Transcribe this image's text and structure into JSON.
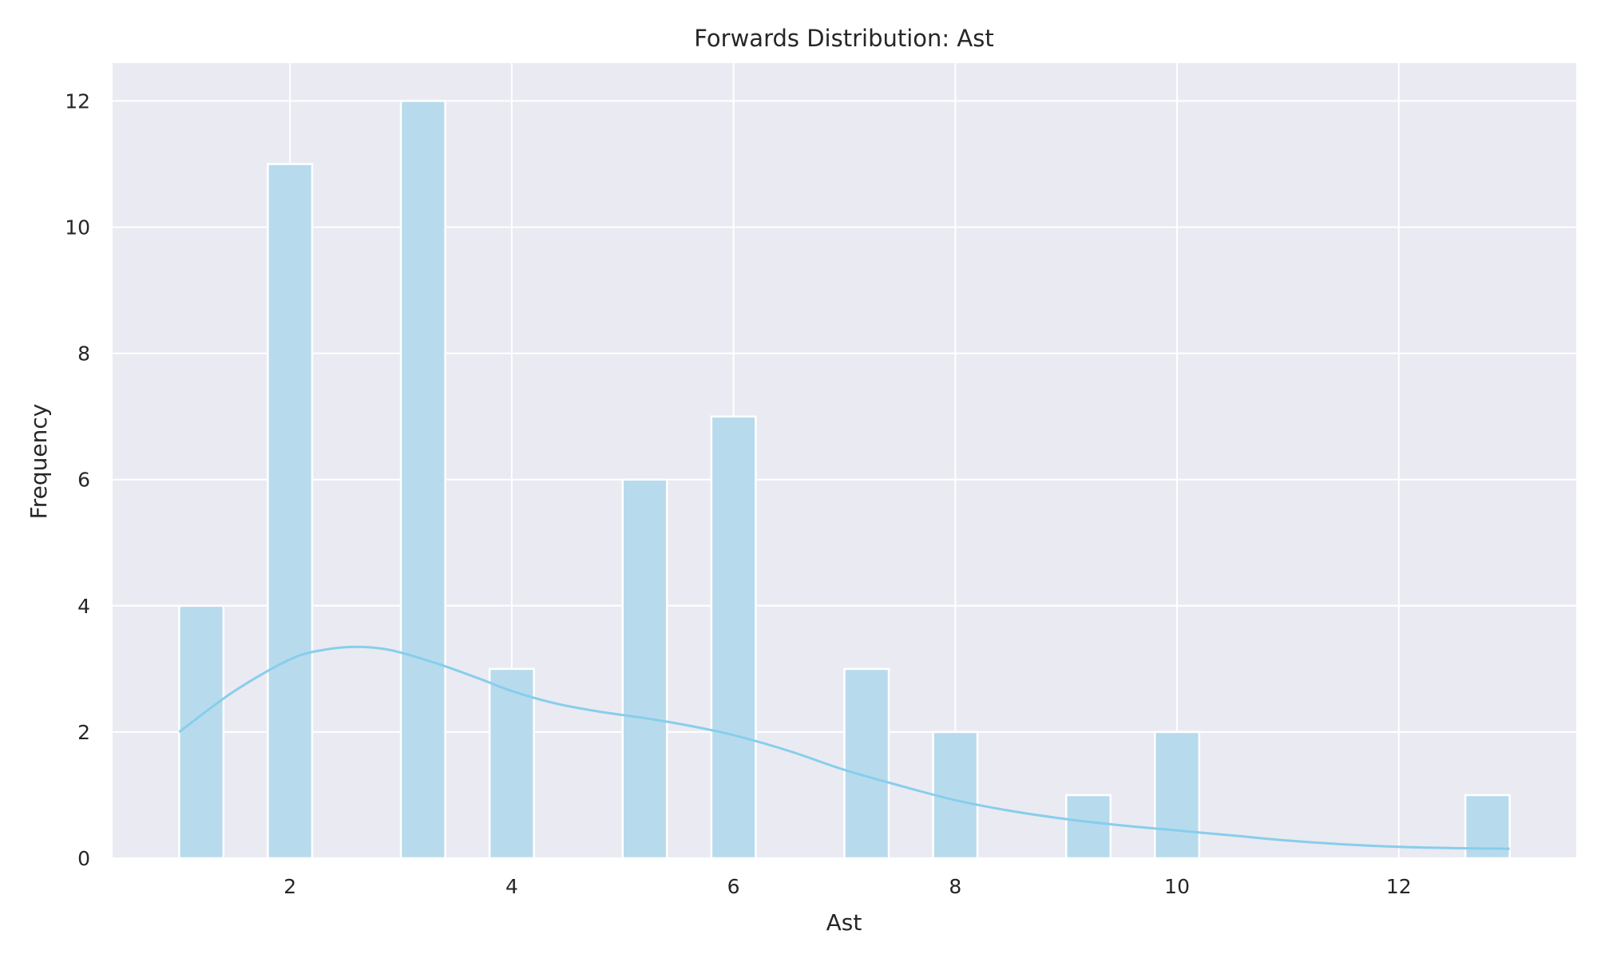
{
  "chart_data": {
    "type": "bar",
    "title": "Forwards Distribution: Ast",
    "xlabel": "Ast",
    "ylabel": "Frequency",
    "xlim": [
      0.4,
      13.6
    ],
    "ylim": [
      0,
      12.6
    ],
    "xticks": [
      2,
      4,
      6,
      8,
      10,
      12
    ],
    "yticks": [
      0,
      2,
      4,
      6,
      8,
      10,
      12
    ],
    "grid": true,
    "bin_width": 0.4,
    "bars": [
      {
        "x0": 1.0,
        "x1": 1.4,
        "value": 4
      },
      {
        "x0": 1.8,
        "x1": 2.2,
        "value": 11
      },
      {
        "x0": 3.0,
        "x1": 3.4,
        "value": 12
      },
      {
        "x0": 3.8,
        "x1": 4.2,
        "value": 3
      },
      {
        "x0": 5.0,
        "x1": 5.4,
        "value": 6
      },
      {
        "x0": 5.8,
        "x1": 6.2,
        "value": 7
      },
      {
        "x0": 7.0,
        "x1": 7.4,
        "value": 3
      },
      {
        "x0": 7.8,
        "x1": 8.2,
        "value": 2
      },
      {
        "x0": 9.0,
        "x1": 9.4,
        "value": 1
      },
      {
        "x0": 9.8,
        "x1": 10.2,
        "value": 2
      },
      {
        "x0": 12.6,
        "x1": 13.0,
        "value": 1
      }
    ],
    "kde": {
      "x": [
        1.0,
        1.5,
        2.0,
        2.3,
        2.6,
        2.9,
        3.3,
        3.7,
        4.0,
        4.4,
        4.8,
        5.2,
        5.6,
        6.0,
        6.5,
        7.0,
        7.5,
        8.0,
        8.5,
        9.0,
        9.5,
        10.0,
        10.5,
        11.0,
        11.5,
        12.0,
        12.5,
        13.0
      ],
      "y": [
        2.0,
        2.65,
        3.15,
        3.3,
        3.35,
        3.3,
        3.1,
        2.85,
        2.65,
        2.45,
        2.32,
        2.22,
        2.1,
        1.95,
        1.7,
        1.4,
        1.15,
        0.92,
        0.75,
        0.62,
        0.52,
        0.44,
        0.36,
        0.28,
        0.22,
        0.18,
        0.16,
        0.15
      ]
    },
    "colors": {
      "bar_fill": "#b7dbed",
      "bar_edge": "#ffffff",
      "kde_line": "#87ceeb",
      "plot_bg": "#eaeaf2"
    }
  }
}
